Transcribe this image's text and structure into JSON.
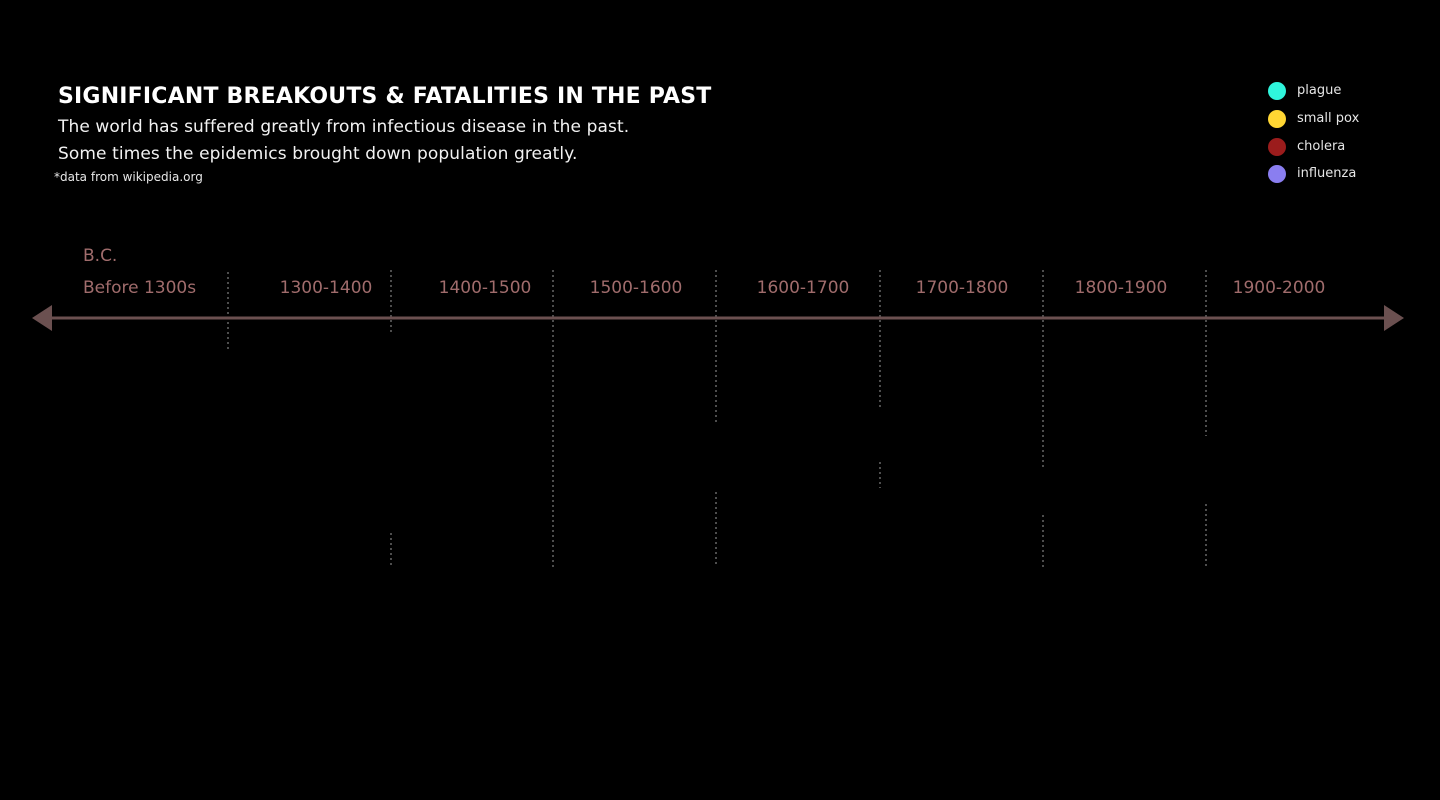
{
  "header": {
    "title": "SIGNIFICANT BREAKOUTS & FATALITIES IN THE PAST",
    "subtitle_line1": "The world has suffered greatly from infectious disease in the past.",
    "subtitle_line2": "Some times the epidemics brought down population greatly.",
    "source": "*data from wikipedia.org"
  },
  "legend": [
    {
      "label": "plague",
      "color": "#2ff5dc"
    },
    {
      "label": "small pox",
      "color": "#ffd633"
    },
    {
      "label": "cholera",
      "color": "#9b1c1c"
    },
    {
      "label": "influenza",
      "color": "#8a7ef0"
    }
  ],
  "timeline": {
    "era_label": "B.C.",
    "periods": [
      "Before 1300s",
      "1300-1400",
      "1400-1500",
      "1500-1600",
      "1600-1700",
      "1700-1800",
      "1800-1900",
      "1900-2000"
    ],
    "axis_color": "#6b5050",
    "label_color": "#a06c6c",
    "divider_color": "#9a9a9a"
  }
}
